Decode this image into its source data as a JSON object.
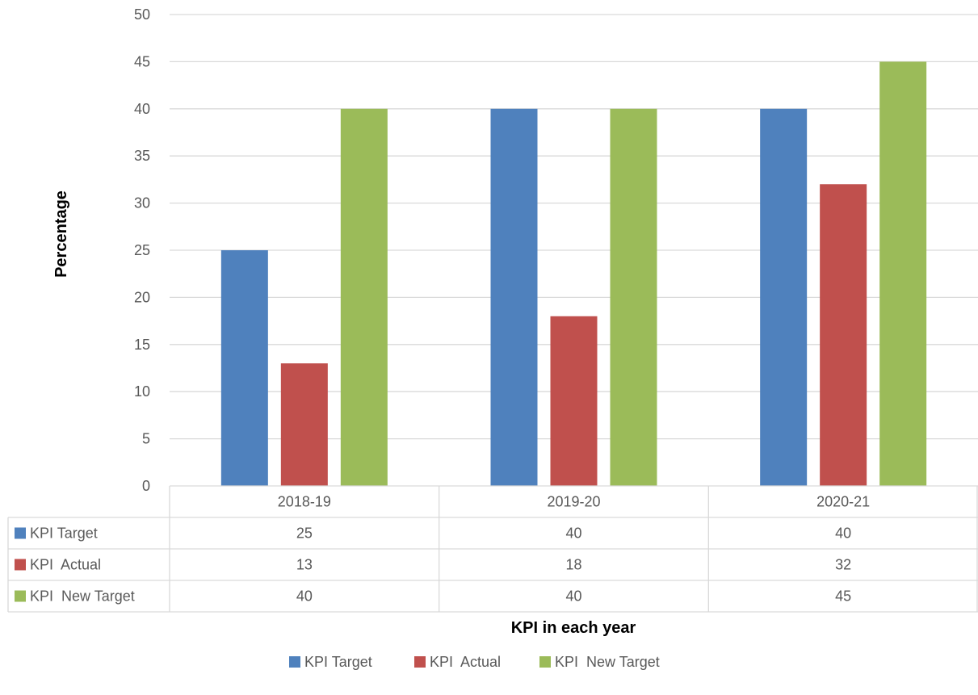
{
  "chart_data": {
    "type": "bar",
    "title": "",
    "xlabel": "KPI in each year",
    "ylabel": "Percentage",
    "ylim": [
      0,
      50
    ],
    "ytick_step": 5,
    "grid": true,
    "legend_position": "bottom",
    "data_table": true,
    "categories": [
      "2018-19",
      "2019-20",
      "2020-21"
    ],
    "series": [
      {
        "name": "KPI Target",
        "color": "#4F81BD",
        "values": [
          25,
          40,
          40
        ]
      },
      {
        "name": "KPI  Actual",
        "color": "#C0504D",
        "values": [
          13,
          18,
          32
        ]
      },
      {
        "name": "KPI  New Target",
        "color": "#9BBB59",
        "values": [
          40,
          40,
          45
        ]
      }
    ]
  }
}
